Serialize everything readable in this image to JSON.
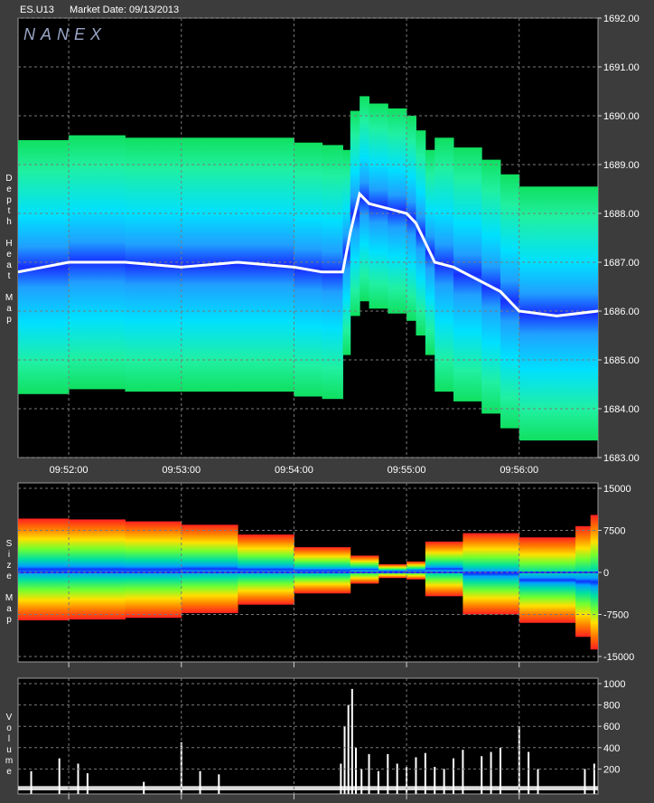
{
  "header": {
    "symbol": "ES.U13",
    "market_date": "Market Date: 09/13/2013"
  },
  "panels": {
    "depth": {
      "label": "Depth Heat Map",
      "watermark": "NANEX"
    },
    "size": {
      "label": "Size Map"
    },
    "volume": {
      "label": "Volume"
    }
  },
  "chart_data": [
    {
      "type": "heatmap",
      "title": "Depth Heat Map",
      "x_ticks": [
        "09:52:00",
        "09:53:00",
        "09:54:00",
        "09:55:00",
        "09:56:00"
      ],
      "y_ticks": [
        "1692.00",
        "1691.00",
        "1690.00",
        "1689.00",
        "1688.00",
        "1687.00",
        "1686.00",
        "1685.00",
        "1684.00",
        "1683.00"
      ],
      "ylim": [
        1683,
        1692
      ],
      "xlim": [
        "09:51:33",
        "09:56:42"
      ],
      "grid": true,
      "price_series": {
        "t": [
          "09:51:33",
          "09:52:00",
          "09:52:30",
          "09:53:00",
          "09:53:30",
          "09:54:00",
          "09:54:15",
          "09:54:26",
          "09:54:30",
          "09:54:35",
          "09:54:40",
          "09:54:50",
          "09:55:00",
          "09:55:05",
          "09:55:10",
          "09:55:15",
          "09:55:25",
          "09:55:40",
          "09:55:50",
          "09:56:00",
          "09:56:20",
          "09:56:42"
        ],
        "price": [
          1686.8,
          1687.0,
          1687.0,
          1686.9,
          1687.0,
          1686.9,
          1686.8,
          1686.8,
          1687.6,
          1688.4,
          1688.2,
          1688.1,
          1688.0,
          1687.8,
          1687.4,
          1687.0,
          1686.9,
          1686.6,
          1686.4,
          1686.0,
          1685.9,
          1686.0
        ]
      }
    },
    {
      "type": "area",
      "title": "Size Map",
      "x_ticks": [
        "09:52:00",
        "09:53:00",
        "09:54:00",
        "09:55:00",
        "09:56:00"
      ],
      "y_ticks": [
        "15000",
        "7500",
        "0",
        "-7500",
        "-15000"
      ],
      "ylim": [
        -15000,
        15000
      ],
      "t": [
        "09:51:33",
        "09:52:00",
        "09:52:30",
        "09:53:00",
        "09:53:30",
        "09:54:00",
        "09:54:30",
        "09:54:45",
        "09:55:00",
        "09:55:10",
        "09:55:30",
        "09:56:00",
        "09:56:30",
        "09:56:38",
        "09:56:42"
      ],
      "upper": [
        9500,
        9700,
        9200,
        9000,
        8000,
        5500,
        3500,
        2500,
        400,
        3500,
        7500,
        6500,
        6000,
        10500,
        10000
      ],
      "lower": [
        -8500,
        -8600,
        -8200,
        -8000,
        -6500,
        -5000,
        -2500,
        -1500,
        -500,
        -2000,
        -6500,
        -8500,
        -9500,
        -13500,
        -14000
      ]
    },
    {
      "type": "bar",
      "title": "Volume",
      "x_ticks": [
        "09:52:00",
        "09:53:00",
        "09:54:00",
        "09:55:00",
        "09:56:00"
      ],
      "y_ticks": [
        "1000",
        "800",
        "600",
        "400",
        "200"
      ],
      "ylim": [
        0,
        1000
      ],
      "t": [
        "09:51:40",
        "09:51:55",
        "09:52:05",
        "09:52:10",
        "09:52:40",
        "09:53:00",
        "09:53:10",
        "09:53:20",
        "09:54:25",
        "09:54:27",
        "09:54:29",
        "09:54:31",
        "09:54:33",
        "09:54:36",
        "09:54:40",
        "09:54:45",
        "09:54:50",
        "09:54:55",
        "09:55:00",
        "09:55:05",
        "09:55:10",
        "09:55:15",
        "09:55:20",
        "09:55:25",
        "09:55:30",
        "09:55:40",
        "09:55:45",
        "09:55:50",
        "09:56:00",
        "09:56:05",
        "09:56:10",
        "09:56:35",
        "09:56:40"
      ],
      "values": [
        180,
        300,
        250,
        160,
        80,
        450,
        180,
        150,
        250,
        600,
        800,
        950,
        400,
        200,
        340,
        180,
        340,
        250,
        220,
        310,
        350,
        220,
        200,
        300,
        380,
        320,
        360,
        400,
        600,
        360,
        200,
        200,
        250
      ]
    }
  ],
  "colors": {
    "background": "#000000",
    "frame": "#3c3c3c",
    "price_line": "#ffffff",
    "heat_low": "#00e676",
    "heat_mid": "#00e0ff",
    "heat_high": "#0030ff",
    "volume_bar": "#ffffff"
  }
}
